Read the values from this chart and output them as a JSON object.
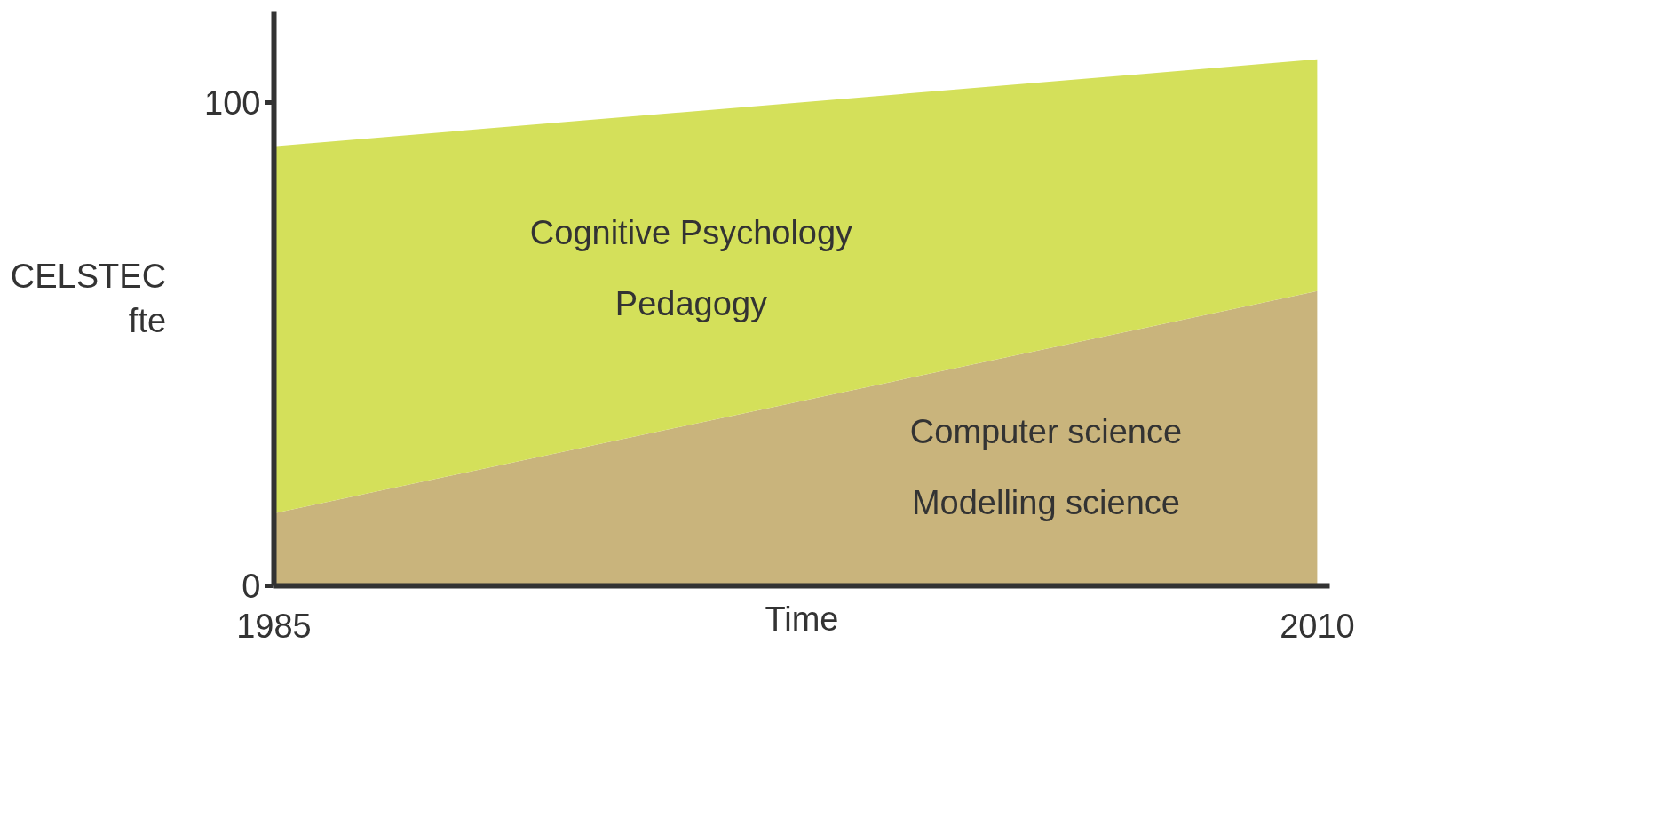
{
  "chart_data": {
    "type": "area",
    "stacked": true,
    "ylabel": "CELSTEC\nfte",
    "xlabel": "Time",
    "x": [
      1985,
      2010
    ],
    "xlim": [
      1985,
      2010.3
    ],
    "ylim": [
      0,
      119
    ],
    "xticks": [
      1985,
      2010
    ],
    "yticks": [
      0,
      100
    ],
    "grid": false,
    "series": [
      {
        "name": "Computer science\nModelling science",
        "color": "#c9b47c",
        "values": [
          15,
          61
        ]
      },
      {
        "name": "Cognitive Psychology\nPedagogy",
        "color": "#d4e05a",
        "values": [
          76,
          48
        ]
      }
    ]
  }
}
